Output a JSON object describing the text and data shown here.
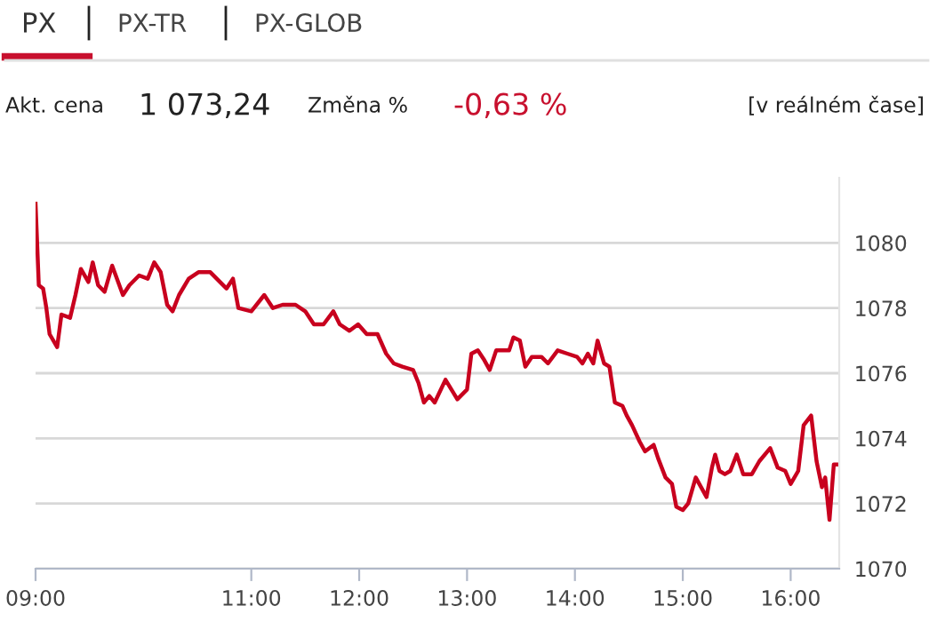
{
  "chart_data": {
    "type": "line",
    "annotations": [
      "PX",
      "PX-TR",
      "PX-GLOB",
      "Akt. cena",
      "1 073,24",
      "Změna %",
      "-0,63 %",
      "[v reálném čase]"
    ],
    "x": [
      9.0,
      9.03,
      9.07,
      9.1,
      9.13,
      9.2,
      9.24,
      9.32,
      9.37,
      9.42,
      9.49,
      9.53,
      9.58,
      9.64,
      9.71,
      9.81,
      9.87,
      9.96,
      10.04,
      10.1,
      10.16,
      10.22,
      10.27,
      10.33,
      10.42,
      10.51,
      10.62,
      10.71,
      10.77,
      10.83,
      10.88,
      11.0,
      11.12,
      11.2,
      11.29,
      11.41,
      11.5,
      11.58,
      11.67,
      11.76,
      11.82,
      11.91,
      11.99,
      12.07,
      12.17,
      12.25,
      12.32,
      12.4,
      12.5,
      12.55,
      12.6,
      12.65,
      12.7,
      12.8,
      12.91,
      13.0,
      13.04,
      13.1,
      13.16,
      13.21,
      13.27,
      13.39,
      13.43,
      13.49,
      13.54,
      13.6,
      13.69,
      13.75,
      13.84,
      13.93,
      14.02,
      14.07,
      14.12,
      14.17,
      14.21,
      14.27,
      14.32,
      14.37,
      14.44,
      14.48,
      14.53,
      14.6,
      14.65,
      14.73,
      14.77,
      14.84,
      14.9,
      14.94,
      15.0,
      15.05,
      15.12,
      15.17,
      15.22,
      15.27,
      15.3,
      15.34,
      15.39,
      15.44,
      15.5,
      15.56,
      15.64,
      15.71,
      15.81,
      15.88,
      15.95,
      16.0,
      16.07,
      16.12,
      16.19,
      16.24,
      16.29,
      16.32,
      16.36,
      16.4,
      16.43
    ],
    "series": [
      {
        "color": "#c8001e",
        "values": [
          1081.2,
          1078.7,
          1078.6,
          1078.0,
          1077.2,
          1076.8,
          1077.8,
          1077.7,
          1078.4,
          1079.2,
          1078.8,
          1079.4,
          1078.7,
          1078.5,
          1079.3,
          1078.4,
          1078.7,
          1079.0,
          1078.9,
          1079.4,
          1079.1,
          1078.1,
          1077.9,
          1078.4,
          1078.9,
          1079.1,
          1079.1,
          1078.8,
          1078.6,
          1078.9,
          1078.0,
          1077.9,
          1078.4,
          1078.0,
          1078.1,
          1078.1,
          1077.9,
          1077.5,
          1077.5,
          1077.9,
          1077.5,
          1077.3,
          1077.5,
          1077.2,
          1077.2,
          1076.6,
          1076.3,
          1076.2,
          1076.1,
          1075.7,
          1075.1,
          1075.3,
          1075.1,
          1075.8,
          1075.2,
          1075.5,
          1076.6,
          1076.7,
          1076.4,
          1076.1,
          1076.7,
          1076.7,
          1077.1,
          1077.0,
          1076.2,
          1076.5,
          1076.5,
          1076.3,
          1076.7,
          1076.6,
          1076.5,
          1076.3,
          1076.6,
          1076.3,
          1077.0,
          1076.3,
          1076.2,
          1075.1,
          1075.0,
          1074.7,
          1074.4,
          1073.9,
          1073.6,
          1073.8,
          1073.4,
          1072.8,
          1072.6,
          1071.9,
          1071.8,
          1072.0,
          1072.8,
          1072.5,
          1072.2,
          1073.1,
          1073.5,
          1073.0,
          1072.9,
          1073.0,
          1073.5,
          1072.9,
          1072.9,
          1073.3,
          1073.7,
          1073.1,
          1073.0,
          1072.6,
          1073.0,
          1074.4,
          1074.7,
          1073.3,
          1072.5,
          1072.8,
          1071.5,
          1073.2,
          1073.2
        ]
      }
    ],
    "xlim": [
      9,
      16.45
    ],
    "xticks": [
      {
        "value": 9,
        "label": "09:00"
      },
      {
        "value": 11,
        "label": "11:00"
      },
      {
        "value": 12,
        "label": "12:00"
      },
      {
        "value": 13,
        "label": "13:00"
      },
      {
        "value": 14,
        "label": "14:00"
      },
      {
        "value": 15,
        "label": "15:00"
      },
      {
        "value": 16,
        "label": "16:00"
      }
    ],
    "ylim": [
      1070,
      1082
    ],
    "yticks": [
      1070,
      1072,
      1074,
      1076,
      1078,
      1080
    ],
    "grid": "y",
    "marker": "none",
    "line_style": "solid"
  }
}
